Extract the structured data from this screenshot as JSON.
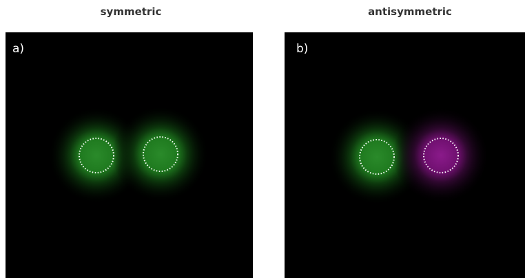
{
  "panels": [
    {
      "title": "symmetric",
      "label": "a)"
    },
    {
      "title": "antisymmetric",
      "label": "b)"
    }
  ]
}
